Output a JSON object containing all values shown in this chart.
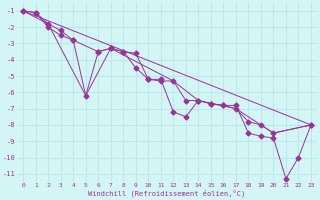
{
  "bg_color": "#d4f5f5",
  "grid_color": "#b8e8e8",
  "line_color": "#993399",
  "xlabel": "Windchill (Refroidissement éolien,°C)",
  "ylim": [
    -11.5,
    -0.5
  ],
  "xlim": [
    -0.5,
    23.5
  ],
  "yticks": [
    -11,
    -10,
    -9,
    -8,
    -7,
    -6,
    -5,
    -4,
    -3,
    -2,
    -1
  ],
  "xticks": [
    0,
    1,
    2,
    3,
    4,
    5,
    6,
    7,
    8,
    9,
    10,
    11,
    12,
    13,
    14,
    15,
    16,
    17,
    18,
    19,
    20,
    21,
    22,
    23
  ],
  "series1": [
    [
      0,
      -1.0
    ],
    [
      1,
      -1.1
    ],
    [
      2,
      -2.0
    ],
    [
      3,
      -2.5
    ],
    [
      4,
      -2.8
    ],
    [
      5,
      -6.2
    ],
    [
      6,
      -3.5
    ],
    [
      7,
      -3.3
    ],
    [
      8,
      -3.5
    ],
    [
      9,
      -4.5
    ],
    [
      10,
      -5.2
    ],
    [
      11,
      -5.2
    ],
    [
      12,
      -7.2
    ],
    [
      13,
      -7.5
    ],
    [
      14,
      -6.5
    ],
    [
      15,
      -6.7
    ],
    [
      16,
      -6.8
    ],
    [
      17,
      -6.8
    ],
    [
      18,
      -8.5
    ],
    [
      19,
      -8.7
    ],
    [
      20,
      -8.8
    ],
    [
      21,
      -11.3
    ],
    [
      22,
      -10.0
    ],
    [
      23,
      -8.0
    ]
  ],
  "series2": [
    [
      0,
      -1.0
    ],
    [
      1,
      -1.1
    ],
    [
      2,
      -1.8
    ],
    [
      3,
      -2.2
    ],
    [
      4,
      -2.8
    ],
    [
      6,
      -3.5
    ],
    [
      7,
      -3.3
    ],
    [
      8,
      -3.5
    ],
    [
      9,
      -3.6
    ],
    [
      10,
      -5.2
    ],
    [
      11,
      -5.3
    ],
    [
      12,
      -5.3
    ],
    [
      13,
      -6.5
    ],
    [
      14,
      -6.5
    ],
    [
      15,
      -6.7
    ],
    [
      16,
      -6.8
    ],
    [
      17,
      -7.0
    ],
    [
      18,
      -7.8
    ],
    [
      19,
      -8.0
    ],
    [
      20,
      -8.5
    ],
    [
      23,
      -8.0
    ]
  ],
  "line_straight": [
    [
      0,
      -1.0
    ],
    [
      23,
      -8.0
    ]
  ],
  "line_v": [
    [
      0,
      -1.0
    ],
    [
      2,
      -1.8
    ],
    [
      5,
      -6.2
    ],
    [
      7,
      -3.3
    ],
    [
      12,
      -5.3
    ],
    [
      14,
      -6.5
    ],
    [
      17,
      -7.0
    ],
    [
      20,
      -8.5
    ],
    [
      23,
      -8.0
    ]
  ]
}
